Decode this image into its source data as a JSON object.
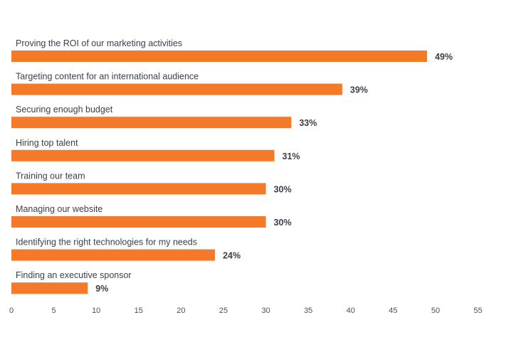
{
  "chart_data": {
    "type": "bar",
    "orientation": "horizontal",
    "categories": [
      "Proving the ROI of our marketing activities",
      "Targeting content for an international audience",
      "Securing enough budget",
      "Hiring top talent",
      "Training our team",
      "Managing our website",
      "Identifying the right technologies for my needs",
      "Finding an executive sponsor"
    ],
    "values": [
      49,
      39,
      33,
      31,
      30,
      30,
      24,
      9
    ],
    "value_labels": [
      "49%",
      "39%",
      "33%",
      "31%",
      "30%",
      "30%",
      "24%",
      "9%"
    ],
    "x_ticks": [
      "0",
      "5",
      "10",
      "15",
      "20",
      "25",
      "30",
      "35",
      "40",
      "45",
      "50",
      "55"
    ],
    "xlim": [
      0,
      55
    ],
    "title": "",
    "xlabel": "",
    "ylabel": "",
    "grid": false,
    "bar_color": "#f47a29",
    "text_color": "#3b3f4a"
  }
}
